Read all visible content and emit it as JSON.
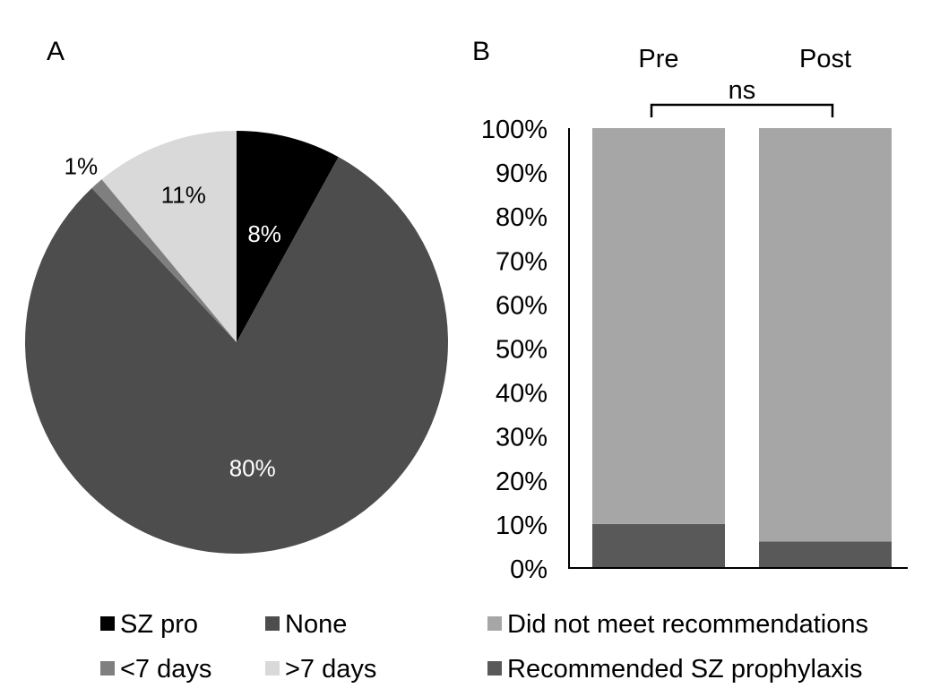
{
  "chart_data": [
    {
      "panel": "A",
      "type": "pie",
      "categories": [
        "SZ pro",
        "None",
        "<7 days",
        ">7 days"
      ],
      "values": [
        8,
        80,
        1,
        11
      ],
      "value_labels": [
        "8%",
        "80%",
        "1%",
        "11%"
      ],
      "colors": [
        "#000000",
        "#4d4d4d",
        "#7f7f7f",
        "#d9d9d9"
      ],
      "label_colors": [
        "#ffffff",
        "#ffffff",
        "#000000",
        "#000000"
      ],
      "legend": [
        "SZ pro",
        "None",
        "<7 days",
        ">7 days"
      ],
      "legend_placement": "bottom",
      "start": "12 o'clock",
      "direction": "clockwise"
    },
    {
      "panel": "B",
      "type": "bar",
      "stacked": true,
      "percent_stacked": true,
      "categories": [
        "Pre",
        "Post"
      ],
      "series": [
        {
          "name": "Recommended SZ prophylaxis",
          "values": [
            10,
            6
          ],
          "color": "#595959"
        },
        {
          "name": "Did not meet recommendations",
          "values": [
            90,
            94
          ],
          "color": "#a6a6a6"
        }
      ],
      "ylim": [
        0,
        100
      ],
      "yticks": [
        "0%",
        "10%",
        "20%",
        "30%",
        "40%",
        "50%",
        "60%",
        "70%",
        "80%",
        "90%",
        "100%"
      ],
      "category_labels_position": "top",
      "annotation": "ns",
      "legend": [
        "Did not meet recommendations",
        "Recommended SZ prophylaxis"
      ],
      "legend_placement": "bottom",
      "grid": false
    }
  ]
}
